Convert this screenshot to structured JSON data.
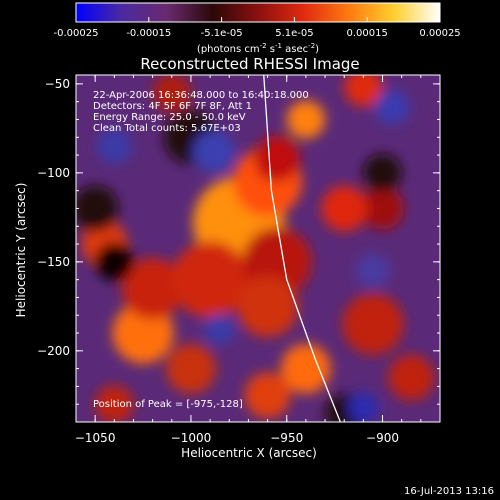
{
  "colorbar": {
    "ticks": [
      "-0.00025",
      "-0.00015",
      "-5.1e-05",
      "5.1e-05",
      "0.00015",
      "0.00025"
    ],
    "units": {
      "prefix": "(photons cm",
      "exp1": "-2",
      "s_part": " s",
      "exp2": "-1",
      "asec_part": " asec",
      "exp3": "-2",
      "suffix": ")"
    },
    "colors": [
      "#0000ff",
      "#4a2aa0",
      "#6a2a6e",
      "#2a0808",
      "#8a1010",
      "#e02a10",
      "#ff7a10",
      "#ffd030",
      "#ffffff"
    ]
  },
  "plot": {
    "title": "Reconstructed RHESSI Image",
    "info_lines": [
      "22-Apr-2006 16:36:48.000 to 16:40:18.000",
      "Detectors: 4F 5F 6F 7F 8F, Att 1",
      "Energy Range: 25.0 - 50.0 keV",
      "Clean     Total counts: 5.67E+03"
    ],
    "peak_label": "Position of Peak = [-975,-128]",
    "xlabel": "Heliocentric X (arcsec)",
    "ylabel": "Heliocentric Y (arcsec)",
    "x_ticks": [
      "-1050",
      "-1000",
      "-950",
      "-900"
    ],
    "y_ticks": [
      "-50",
      "-100",
      "-150",
      "-200"
    ],
    "x_range": [
      -1060,
      -870
    ],
    "y_range": [
      -240,
      -45
    ]
  },
  "footer": {
    "timestamp": "16-Jul-2013 13:16"
  },
  "image_field": {
    "background": "#5a2a78",
    "blobs": [
      {
        "x": -977,
        "y": -130,
        "r": 16,
        "c": "#ffffa0"
      },
      {
        "x": -975,
        "y": -128,
        "r": 24,
        "c": "#ff9010"
      },
      {
        "x": -960,
        "y": -105,
        "r": 18,
        "c": "#ff5010"
      },
      {
        "x": -1025,
        "y": -191,
        "r": 9,
        "c": "#fff0a0"
      },
      {
        "x": -1025,
        "y": -190,
        "r": 16,
        "c": "#ff7010"
      },
      {
        "x": -955,
        "y": -92,
        "r": 12,
        "c": "#c01010"
      },
      {
        "x": -940,
        "y": -70,
        "r": 10,
        "c": "#ff8010"
      },
      {
        "x": -910,
        "y": -52,
        "r": 10,
        "c": "#e02a10"
      },
      {
        "x": -1045,
        "y": -140,
        "r": 12,
        "c": "#e03a10"
      },
      {
        "x": -1020,
        "y": -165,
        "r": 16,
        "c": "#c82010"
      },
      {
        "x": -990,
        "y": -160,
        "r": 20,
        "c": "#d02810"
      },
      {
        "x": -955,
        "y": -150,
        "r": 18,
        "c": "#b81810"
      },
      {
        "x": -960,
        "y": -175,
        "r": 16,
        "c": "#d03010"
      },
      {
        "x": -905,
        "y": -185,
        "r": 16,
        "c": "#c02010"
      },
      {
        "x": -940,
        "y": -210,
        "r": 13,
        "c": "#ff6a10"
      },
      {
        "x": -1000,
        "y": -210,
        "r": 13,
        "c": "#c83010"
      },
      {
        "x": -960,
        "y": -225,
        "r": 12,
        "c": "#e04010"
      },
      {
        "x": -885,
        "y": -215,
        "r": 12,
        "c": "#c02010"
      },
      {
        "x": -900,
        "y": -120,
        "r": 11,
        "c": "#a01010"
      },
      {
        "x": -920,
        "y": -120,
        "r": 12,
        "c": "#e02810"
      },
      {
        "x": -1010,
        "y": -55,
        "r": 10,
        "c": "#b01a10"
      },
      {
        "x": -1040,
        "y": -230,
        "r": 10,
        "c": "#c02010"
      },
      {
        "x": -1000,
        "y": -80,
        "r": 14,
        "c": "#200808"
      },
      {
        "x": -1050,
        "y": -120,
        "r": 12,
        "c": "#200808"
      },
      {
        "x": -1040,
        "y": -150,
        "r": 10,
        "c": "#100404"
      },
      {
        "x": -900,
        "y": -100,
        "r": 10,
        "c": "#200808"
      },
      {
        "x": -920,
        "y": -235,
        "r": 10,
        "c": "#200808"
      },
      {
        "x": -988,
        "y": -88,
        "r": 11,
        "c": "#3a40b0"
      },
      {
        "x": -1040,
        "y": -85,
        "r": 9,
        "c": "#3a3aa8"
      },
      {
        "x": -895,
        "y": -63,
        "r": 9,
        "c": "#3a3ab0"
      },
      {
        "x": -905,
        "y": -155,
        "r": 9,
        "c": "#4a3aa0"
      },
      {
        "x": -910,
        "y": -232,
        "r": 8,
        "c": "#2a2ab0"
      },
      {
        "x": -985,
        "y": -188,
        "r": 8,
        "c": "#3a3aa8"
      }
    ],
    "limb": [
      [
        -962,
        -45
      ],
      [
        -958,
        -110
      ],
      [
        -950,
        -160
      ],
      [
        -935,
        -205
      ],
      [
        -922,
        -240
      ]
    ]
  }
}
